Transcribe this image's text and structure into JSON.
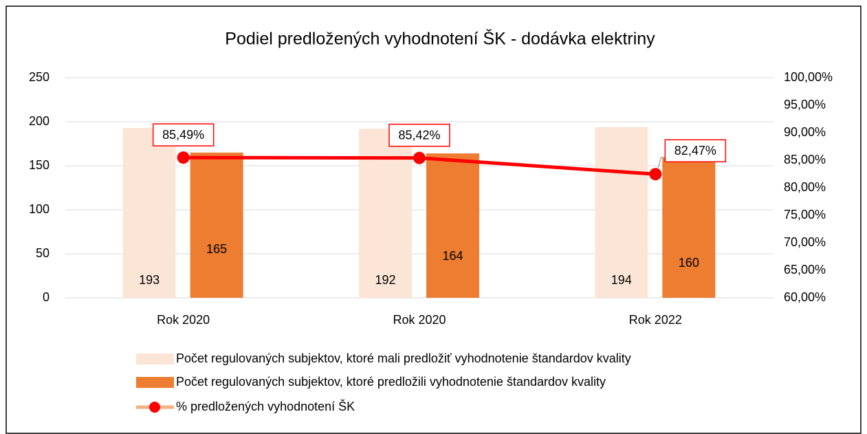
{
  "chart_data": {
    "type": "bar_line",
    "title": "Podiel predložených vyhodnotení ŠK - dodávka elektriny",
    "categories": [
      "Rok 2020",
      "Rok 2020",
      "Rok 2022"
    ],
    "series": [
      {
        "name": "Počet regulovaných subjektov, ktoré mali predložiť vyhodnotenie štandardov kvality",
        "color": "#fbe5d6",
        "type": "bar",
        "values": [
          193,
          192,
          194
        ]
      },
      {
        "name": "Počet regulovaných subjektov, ktoré predložili vyhodnotenie štandardov kvality",
        "color": "#ed7d31",
        "type": "bar",
        "values": [
          165,
          164,
          160
        ]
      },
      {
        "name": "% predložených vyhodnotení ŠK",
        "color": "#ff0000",
        "type": "line",
        "axis": "y2",
        "values": [
          85.49,
          85.42,
          82.47
        ],
        "value_labels": [
          "85,49%",
          "85,42%",
          "82,47%"
        ]
      }
    ],
    "ylim": [
      0,
      250
    ],
    "yticks": [
      0,
      50,
      100,
      150,
      200,
      250
    ],
    "y2lim": [
      60,
      100
    ],
    "y2ticks": [
      {
        "value": 60,
        "label": "60,00%"
      },
      {
        "value": 65,
        "label": "65,00%"
      },
      {
        "value": 70,
        "label": "70,00%"
      },
      {
        "value": 75,
        "label": "75,00%"
      },
      {
        "value": 80,
        "label": "80,00%"
      },
      {
        "value": 85,
        "label": "85,00%"
      },
      {
        "value": 90,
        "label": "90,00%"
      },
      {
        "value": 95,
        "label": "95,00%"
      },
      {
        "value": 100,
        "label": "100,00%"
      }
    ],
    "grid": true,
    "legend": "bottom"
  }
}
